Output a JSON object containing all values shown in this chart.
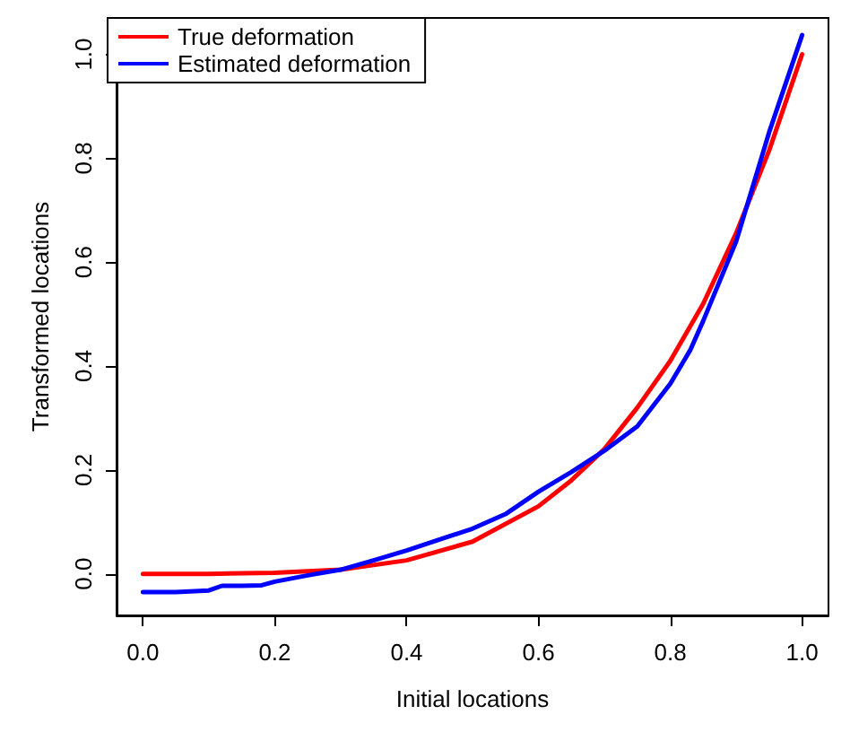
{
  "chart_data": {
    "type": "line",
    "xlabel": "Initial locations",
    "ylabel": "Transformed locations",
    "legend": "top left",
    "grid": false,
    "marker": "none",
    "line_style": "solid",
    "xlim": [
      -0.04,
      1.04
    ],
    "ylim": [
      -0.08,
      1.07
    ],
    "xticks": [
      {
        "value": 0,
        "label": "0.0"
      },
      0.2,
      0.4,
      0.6,
      0.8,
      {
        "value": 1,
        "label": "1.0"
      }
    ],
    "yticks": [
      {
        "value": 0,
        "label": "0.0"
      },
      0.2,
      0.4,
      0.6,
      0.8,
      {
        "value": 1,
        "label": "1.0"
      }
    ],
    "series": [
      {
        "name": "True deformation",
        "color": "#ff0000",
        "x": [
          0,
          0.1,
          0.2,
          0.3,
          0.4,
          0.5,
          0.6,
          0.65,
          0.7,
          0.75,
          0.8,
          0.85,
          0.9,
          0.95,
          1.0
        ],
        "values": [
          0,
          0,
          0.002,
          0.008,
          0.026,
          0.062,
          0.13,
          0.18,
          0.24,
          0.32,
          0.41,
          0.52,
          0.656,
          0.815,
          1.0
        ]
      },
      {
        "name": "Estimated deformation",
        "color": "#0000ff",
        "x": [
          0,
          0.05,
          0.1,
          0.12,
          0.15,
          0.18,
          0.2,
          0.25,
          0.3,
          0.35,
          0.4,
          0.45,
          0.5,
          0.55,
          0.6,
          0.65,
          0.7,
          0.75,
          0.8,
          0.83,
          0.85,
          0.9,
          0.95,
          1.0
        ],
        "values": [
          -0.035,
          -0.035,
          -0.032,
          -0.023,
          -0.023,
          -0.022,
          -0.015,
          -0.003,
          0.008,
          0.026,
          0.045,
          0.066,
          0.087,
          0.115,
          0.158,
          0.196,
          0.237,
          0.284,
          0.366,
          0.43,
          0.487,
          0.64,
          0.85,
          1.037
        ]
      }
    ]
  }
}
